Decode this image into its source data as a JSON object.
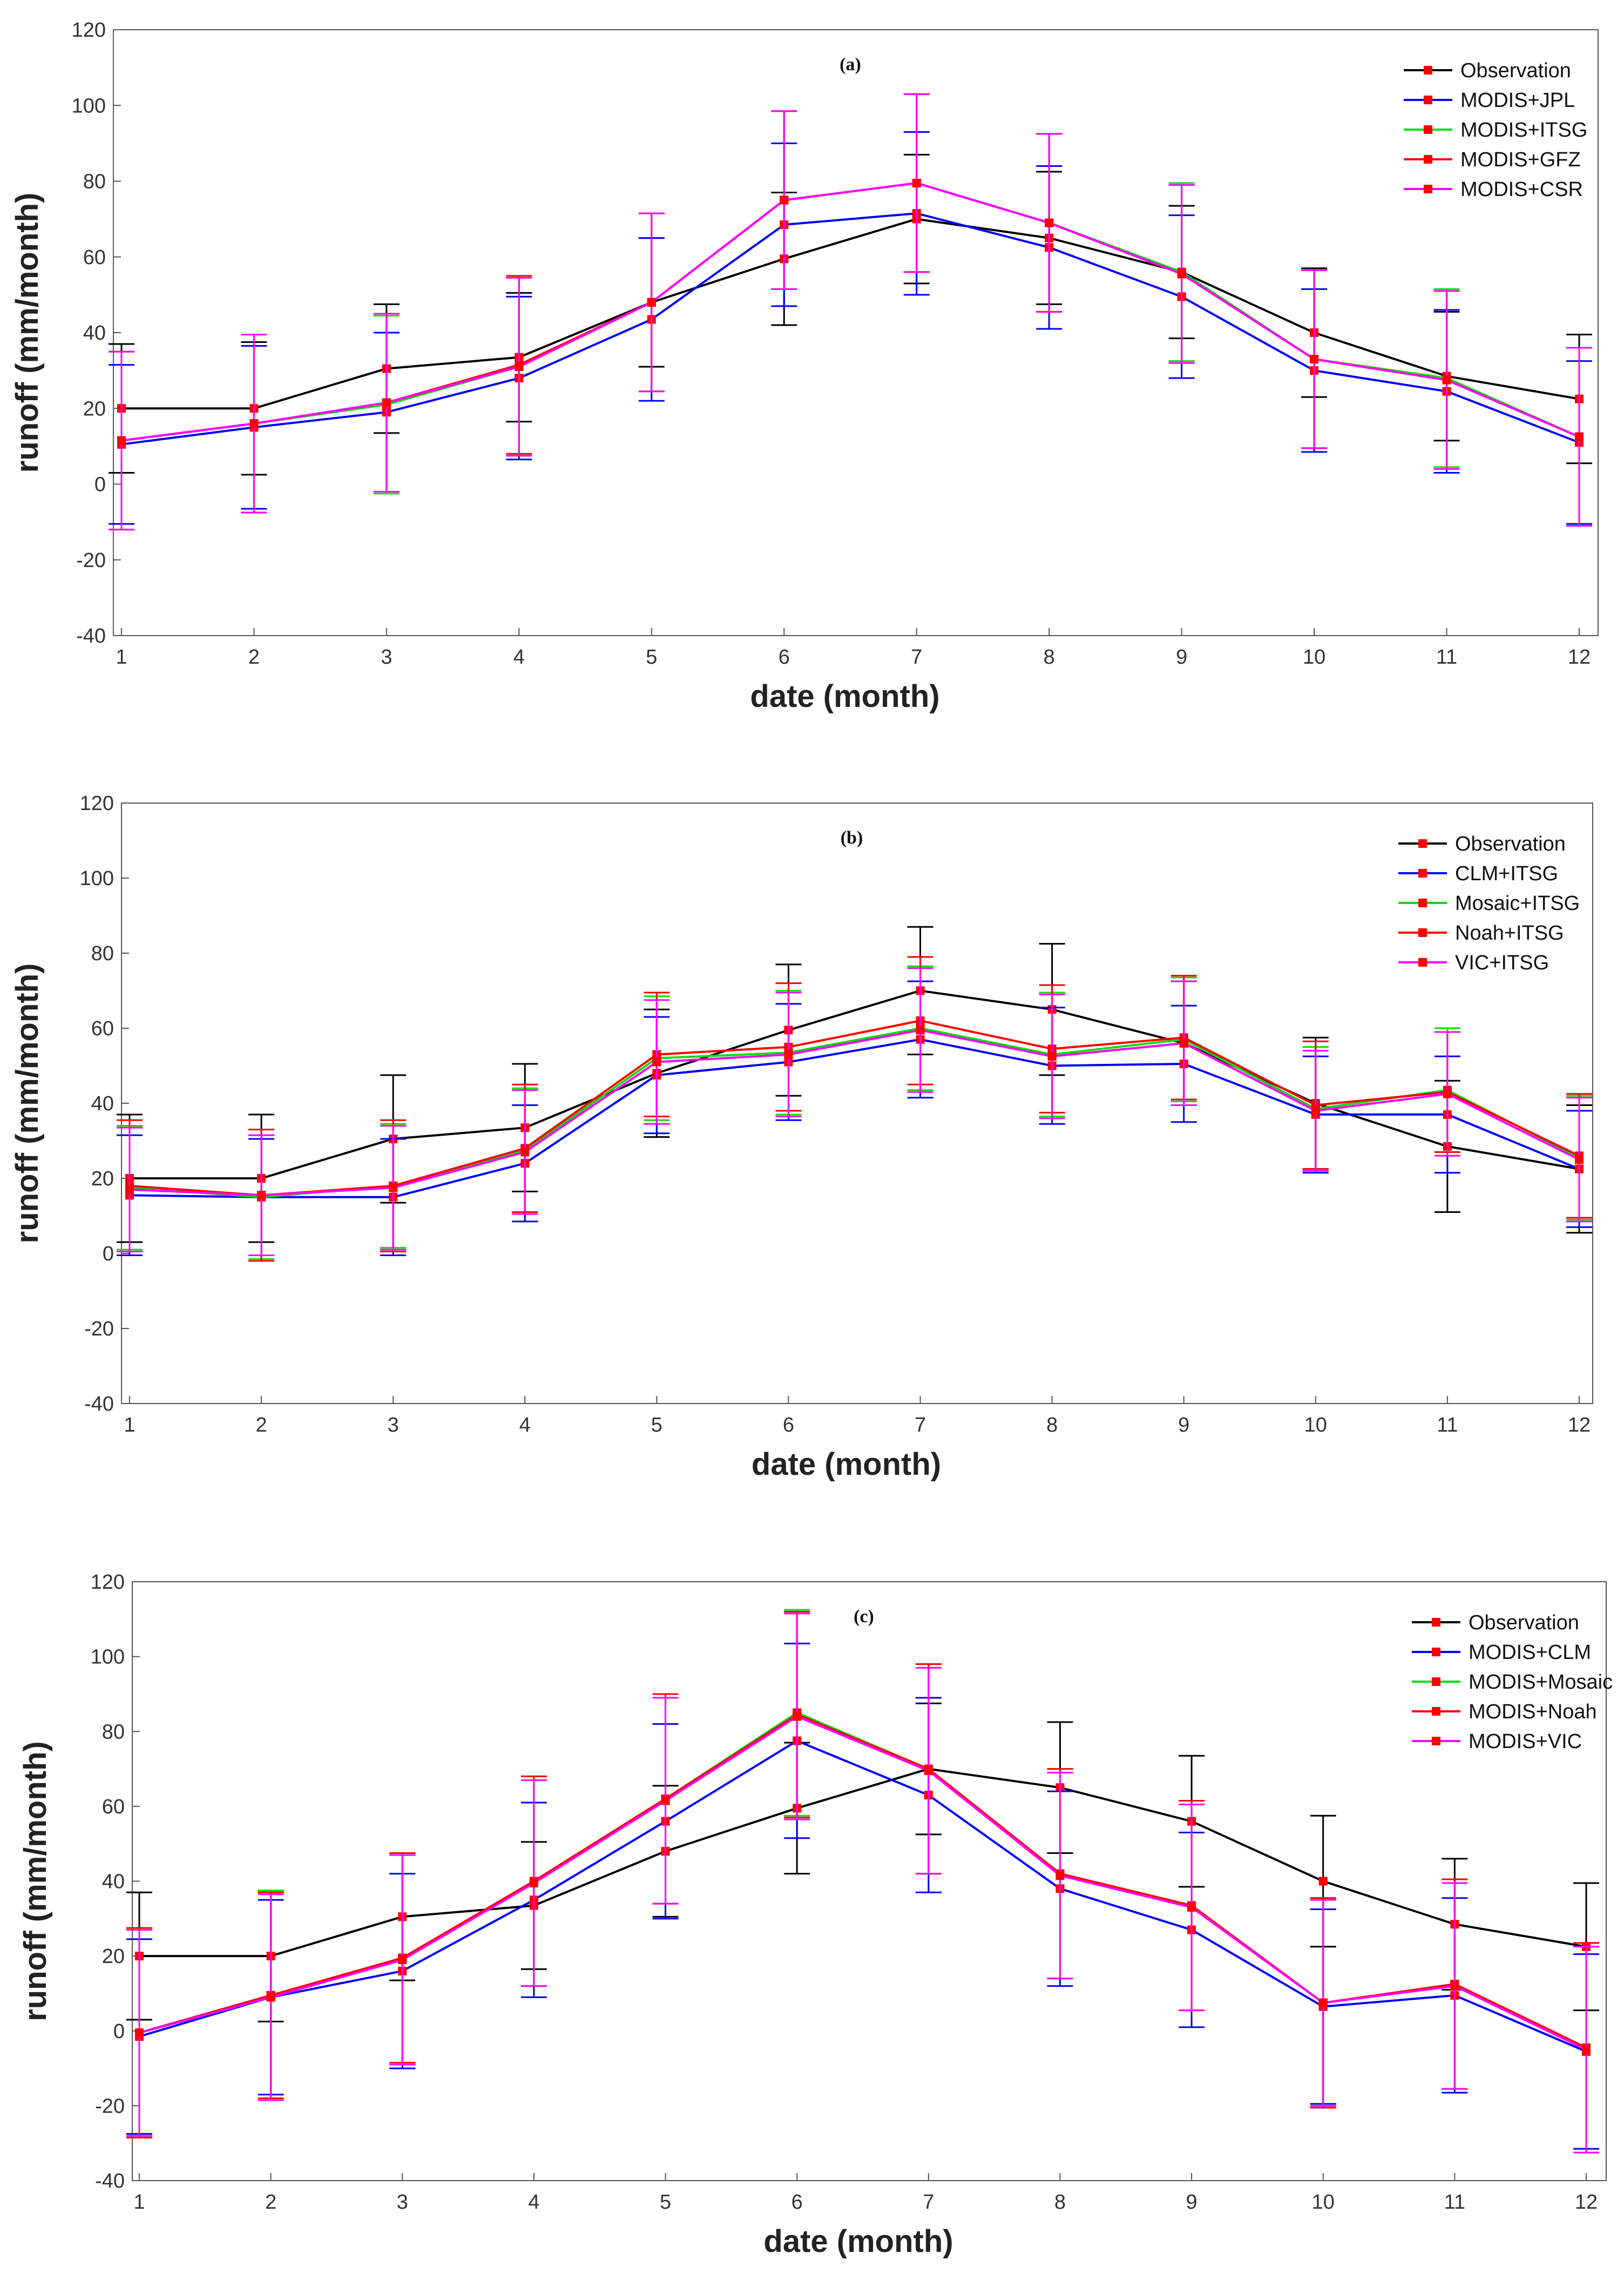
{
  "chart_data": [
    {
      "type": "line",
      "title": "(a)",
      "xlabel": "date (month)",
      "ylabel": "runoff (mm/month)",
      "xlim": [
        1,
        12
      ],
      "ylim": [
        -40,
        120
      ],
      "x": [
        1,
        2,
        3,
        4,
        5,
        6,
        7,
        8,
        9,
        10,
        11,
        12
      ],
      "xticks": [
        "1",
        "2",
        "3",
        "4",
        "5",
        "6",
        "7",
        "8",
        "9",
        "10",
        "11",
        "12"
      ],
      "yticks": [
        "120",
        "100",
        "80",
        "60",
        "40",
        "20",
        "0",
        "-20",
        "-40"
      ],
      "legend_position": "top-right",
      "series": [
        {
          "name": "Observation",
          "color": "#000000",
          "values": [
            20,
            20,
            30.5,
            33.5,
            48,
            59.5,
            70,
            65,
            56,
            40,
            28.5,
            22.5
          ],
          "err": [
            17,
            17.5,
            17,
            17,
            17,
            17.5,
            17,
            17.5,
            17.5,
            17,
            17,
            17
          ]
        },
        {
          "name": "MODIS+JPL",
          "color": "#0000ff",
          "values": [
            10.5,
            15,
            19,
            28,
            43.5,
            68.5,
            71.5,
            62.5,
            49.5,
            30,
            24.5,
            11
          ],
          "err": [
            21,
            21.5,
            21,
            21.5,
            21.5,
            21.5,
            21.5,
            21.5,
            21.5,
            21.5,
            21.5,
            21.5
          ]
        },
        {
          "name": "MODIS+ITSG",
          "color": "#00dd00",
          "values": [
            11.5,
            16,
            21,
            31,
            48,
            75,
            79.5,
            69,
            56,
            33,
            28,
            12.5
          ],
          "err": [
            23.5,
            23.5,
            23.5,
            23.5,
            23.5,
            23.5,
            23.5,
            23.5,
            23.5,
            23.5,
            23.5,
            23.5
          ]
        },
        {
          "name": "MODIS+GFZ",
          "color": "#ff0000",
          "values": [
            11.5,
            16,
            21.5,
            31.5,
            48,
            75,
            79.5,
            69,
            55.5,
            33,
            27.5,
            12.5
          ],
          "err": [
            23.5,
            23.5,
            23.5,
            23.5,
            23.5,
            23.5,
            23.5,
            23.5,
            23.5,
            23.5,
            23.5,
            23.5
          ]
        },
        {
          "name": "MODIS+CSR",
          "color": "#ff00ff",
          "values": [
            11.5,
            16,
            21.5,
            31,
            48,
            75,
            79.5,
            69,
            55.5,
            33,
            27.5,
            12.5
          ],
          "err": [
            23.5,
            23.5,
            23.5,
            23.5,
            23.5,
            23.5,
            23.5,
            23.5,
            23.5,
            23.5,
            23.5,
            23.5
          ]
        }
      ]
    },
    {
      "type": "line",
      "title": "(b)",
      "xlabel": "date (month)",
      "ylabel": "runoff (mm/month)",
      "xlim": [
        1,
        12
      ],
      "ylim": [
        -40,
        120
      ],
      "x": [
        1,
        2,
        3,
        4,
        5,
        6,
        7,
        8,
        9,
        10,
        11,
        12
      ],
      "xticks": [
        "1",
        "2",
        "3",
        "4",
        "5",
        "6",
        "7",
        "8",
        "9",
        "10",
        "11",
        "12"
      ],
      "yticks": [
        "120",
        "100",
        "80",
        "60",
        "40",
        "20",
        "0",
        "-20",
        "-40"
      ],
      "legend_position": "top-right",
      "series": [
        {
          "name": "Observation",
          "color": "#000000",
          "values": [
            20,
            20,
            30.5,
            33.5,
            48,
            59.5,
            70,
            65,
            56,
            40,
            28.5,
            22.5
          ],
          "err": [
            17,
            17,
            17,
            17,
            17,
            17.5,
            17,
            17.5,
            16.5,
            17.5,
            17.5,
            17
          ]
        },
        {
          "name": "CLM+ITSG",
          "color": "#0000ff",
          "values": [
            15.5,
            15,
            15,
            24,
            47.5,
            51,
            57,
            50,
            50.5,
            37,
            37,
            22.5
          ],
          "err": [
            16,
            15.5,
            15.5,
            15.5,
            15.5,
            15.5,
            15.5,
            15.5,
            15.5,
            15.5,
            15.5,
            15.5
          ]
        },
        {
          "name": "Mosaic+ITSG",
          "color": "#00dd00",
          "values": [
            17.5,
            15,
            18,
            27.5,
            52,
            53.5,
            60,
            53,
            57,
            38.5,
            43.5,
            25.5
          ],
          "err": [
            16.5,
            16.5,
            16.5,
            16.5,
            16.5,
            16.5,
            16.5,
            16.5,
            16.5,
            16.5,
            16.5,
            16.5
          ]
        },
        {
          "name": "Noah+ITSG",
          "color": "#ff0000",
          "values": [
            18,
            15.5,
            18,
            28,
            53,
            55,
            62,
            54.5,
            57.5,
            39.5,
            43,
            26
          ],
          "err": [
            17.5,
            17.5,
            17.5,
            17,
            16.5,
            17,
            17,
            17,
            16.5,
            17,
            16,
            16.5
          ]
        },
        {
          "name": "VIC+ITSG",
          "color": "#ff00ff",
          "values": [
            17,
            15.5,
            17.5,
            27,
            51,
            53,
            59.5,
            52.5,
            56,
            38,
            42.5,
            25
          ],
          "err": [
            16.5,
            16,
            16.5,
            16.5,
            16.5,
            16.5,
            16.5,
            16.5,
            16.5,
            16,
            16.5,
            16.5
          ]
        }
      ]
    },
    {
      "type": "line",
      "title": "(c)",
      "xlabel": "date (month)",
      "ylabel": "runoff (mm/month)",
      "xlim": [
        1,
        12
      ],
      "ylim": [
        -40,
        120
      ],
      "x": [
        1,
        2,
        3,
        4,
        5,
        6,
        7,
        8,
        9,
        10,
        11,
        12
      ],
      "xticks": [
        "1",
        "2",
        "3",
        "4",
        "5",
        "6",
        "7",
        "8",
        "9",
        "10",
        "11",
        "12"
      ],
      "yticks": [
        "120",
        "100",
        "80",
        "60",
        "40",
        "20",
        "0",
        "-20",
        "-40"
      ],
      "legend_position": "top-right",
      "series": [
        {
          "name": "Observation",
          "color": "#000000",
          "values": [
            20,
            20,
            30.5,
            33.5,
            48,
            59.5,
            70,
            65,
            56,
            40,
            28.5,
            22.5
          ],
          "err": [
            17,
            17.5,
            17,
            17,
            17.5,
            17.5,
            17.5,
            17.5,
            17.5,
            17.5,
            17.5,
            17
          ]
        },
        {
          "name": "MODIS+CLM",
          "color": "#0000ff",
          "values": [
            -1.5,
            9,
            16,
            35,
            56,
            77.5,
            63,
            38,
            27,
            6.5,
            9.5,
            -5.5
          ],
          "err": [
            26,
            26,
            26,
            26,
            26,
            26,
            26,
            26,
            26,
            26,
            26,
            26
          ]
        },
        {
          "name": "MODIS+Mosaic",
          "color": "#00dd00",
          "values": [
            -0.5,
            9.5,
            19,
            40,
            62,
            85,
            70,
            42,
            33.5,
            7.5,
            12.5,
            -4.5
          ],
          "err": [
            28,
            28,
            28,
            28,
            28,
            27.5,
            28,
            28,
            28,
            28,
            28,
            28
          ]
        },
        {
          "name": "MODIS+Noah",
          "color": "#ff0000",
          "values": [
            -0.5,
            9.5,
            19.5,
            40,
            62,
            84.5,
            70,
            42,
            33.5,
            7.5,
            12.5,
            -4.5
          ],
          "err": [
            28,
            27.5,
            28,
            28,
            28,
            27.5,
            28,
            28,
            28,
            28,
            28,
            28
          ]
        },
        {
          "name": "MODIS+VIC",
          "color": "#ff00ff",
          "values": [
            -0.5,
            9,
            19,
            39.5,
            61.5,
            84,
            69.5,
            41.5,
            33,
            7.5,
            12,
            -5
          ],
          "err": [
            27.5,
            27.5,
            28,
            27.5,
            27.5,
            27.5,
            27.5,
            27.5,
            27.5,
            27.5,
            27.5,
            27.5
          ]
        }
      ]
    }
  ]
}
